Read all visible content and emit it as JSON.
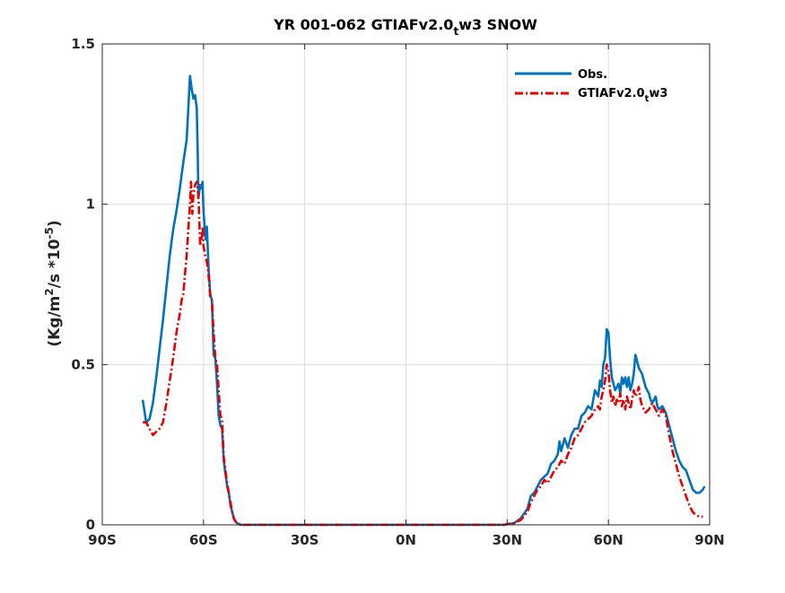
{
  "chart_data": {
    "type": "line",
    "title_main": "YR 001-062 GTIAFv2.0",
    "title_sub": "t",
    "title_tail": "w3 SNOW",
    "ylabel_main": "(Kg/m",
    "ylabel_sup1": "2",
    "ylabel_mid": "/s *10",
    "ylabel_sup2": "-5",
    "ylabel_end": ")",
    "xlabel": "",
    "xlim": [
      -90,
      90
    ],
    "ylim": [
      0,
      1.5
    ],
    "grid": true,
    "legend_position": "top-right",
    "x_ticks": [
      {
        "value": -90,
        "label": "90S"
      },
      {
        "value": -60,
        "label": "60S"
      },
      {
        "value": -30,
        "label": "30S"
      },
      {
        "value": 0,
        "label": "0N"
      },
      {
        "value": 30,
        "label": "30N"
      },
      {
        "value": 60,
        "label": "60N"
      },
      {
        "value": 90,
        "label": "90N"
      }
    ],
    "y_ticks": [
      {
        "value": 0,
        "label": "0"
      },
      {
        "value": 0.5,
        "label": "0.5"
      },
      {
        "value": 1,
        "label": "1"
      },
      {
        "value": 1.5,
        "label": "1.5"
      }
    ],
    "series": [
      {
        "name": "Obs.",
        "color": "#0072BD",
        "dash": "solid",
        "points": [
          [
            -78,
            0.39
          ],
          [
            -77,
            0.32
          ],
          [
            -76,
            0.33
          ],
          [
            -75,
            0.38
          ],
          [
            -74,
            0.46
          ],
          [
            -73,
            0.55
          ],
          [
            -72,
            0.64
          ],
          [
            -71,
            0.74
          ],
          [
            -70,
            0.84
          ],
          [
            -69,
            0.92
          ],
          [
            -68,
            0.98
          ],
          [
            -67,
            1.05
          ],
          [
            -66,
            1.13
          ],
          [
            -65,
            1.2
          ],
          [
            -64.5,
            1.3
          ],
          [
            -64,
            1.4
          ],
          [
            -63.5,
            1.36
          ],
          [
            -63,
            1.33
          ],
          [
            -62.5,
            1.34
          ],
          [
            -62,
            1.3
          ],
          [
            -61.7,
            1.15
          ],
          [
            -61.5,
            1.02
          ],
          [
            -61,
            1.06
          ],
          [
            -60.6,
            1.05
          ],
          [
            -60.3,
            1.07
          ],
          [
            -60,
            0.98
          ],
          [
            -59.6,
            0.92
          ],
          [
            -59.3,
            0.89
          ],
          [
            -59,
            0.93
          ],
          [
            -58.5,
            0.8
          ],
          [
            -58,
            0.72
          ],
          [
            -57.5,
            0.7
          ],
          [
            -57.2,
            0.6
          ],
          [
            -57,
            0.53
          ],
          [
            -56.5,
            0.52
          ],
          [
            -56,
            0.44
          ],
          [
            -55.5,
            0.34
          ],
          [
            -55,
            0.31
          ],
          [
            -54.5,
            0.3
          ],
          [
            -54,
            0.2
          ],
          [
            -53.5,
            0.16
          ],
          [
            -53,
            0.12
          ],
          [
            -52.5,
            0.1
          ],
          [
            -52,
            0.06
          ],
          [
            -51.5,
            0.04
          ],
          [
            -51,
            0.02
          ],
          [
            -50.5,
            0.01
          ],
          [
            -50,
            0.005
          ],
          [
            -49,
            0.0
          ],
          [
            -30,
            0.0
          ],
          [
            0,
            0.0
          ],
          [
            29,
            0.0
          ],
          [
            30,
            0.002
          ],
          [
            32,
            0.005
          ],
          [
            34,
            0.02
          ],
          [
            36,
            0.05
          ],
          [
            37,
            0.09
          ],
          [
            38,
            0.1
          ],
          [
            39,
            0.12
          ],
          [
            40,
            0.14
          ],
          [
            41,
            0.15
          ],
          [
            42,
            0.16
          ],
          [
            43,
            0.19
          ],
          [
            44,
            0.2
          ],
          [
            45,
            0.22
          ],
          [
            45.5,
            0.26
          ],
          [
            46,
            0.23
          ],
          [
            46.5,
            0.25
          ],
          [
            47,
            0.27
          ],
          [
            48,
            0.24
          ],
          [
            49,
            0.28
          ],
          [
            50,
            0.3
          ],
          [
            51,
            0.3
          ],
          [
            52,
            0.34
          ],
          [
            53,
            0.35
          ],
          [
            54,
            0.37
          ],
          [
            55,
            0.36
          ],
          [
            56,
            0.42
          ],
          [
            57,
            0.4
          ],
          [
            57.5,
            0.45
          ],
          [
            58,
            0.43
          ],
          [
            58.5,
            0.5
          ],
          [
            59,
            0.52
          ],
          [
            59.5,
            0.61
          ],
          [
            60,
            0.6
          ],
          [
            60.5,
            0.52
          ],
          [
            61,
            0.46
          ],
          [
            61.5,
            0.44
          ],
          [
            62,
            0.42
          ],
          [
            63,
            0.44
          ],
          [
            63.5,
            0.41
          ],
          [
            64,
            0.46
          ],
          [
            64.5,
            0.44
          ],
          [
            65,
            0.46
          ],
          [
            65.5,
            0.43
          ],
          [
            66,
            0.46
          ],
          [
            66.5,
            0.42
          ],
          [
            67,
            0.44
          ],
          [
            67.5,
            0.47
          ],
          [
            68,
            0.53
          ],
          [
            68.5,
            0.51
          ],
          [
            69,
            0.49
          ],
          [
            70,
            0.47
          ],
          [
            70.5,
            0.45
          ],
          [
            71,
            0.43
          ],
          [
            72,
            0.41
          ],
          [
            72.5,
            0.39
          ],
          [
            73,
            0.38
          ],
          [
            74,
            0.4
          ],
          [
            74.5,
            0.37
          ],
          [
            75,
            0.36
          ],
          [
            76,
            0.37
          ],
          [
            77,
            0.35
          ],
          [
            78,
            0.31
          ],
          [
            79,
            0.27
          ],
          [
            80,
            0.23
          ],
          [
            81,
            0.2
          ],
          [
            82,
            0.18
          ],
          [
            83,
            0.17
          ],
          [
            84,
            0.14
          ],
          [
            85,
            0.11
          ],
          [
            86,
            0.1
          ],
          [
            87,
            0.1
          ],
          [
            88,
            0.11
          ],
          [
            88.5,
            0.12
          ]
        ]
      },
      {
        "name": "GTIAFv2.0",
        "name_sub": "t",
        "name_tail": "w3",
        "color": "#E60000",
        "dash": "dashdot",
        "points": [
          [
            -78,
            0.32
          ],
          [
            -77,
            0.32
          ],
          [
            -76,
            0.3
          ],
          [
            -75,
            0.28
          ],
          [
            -74,
            0.29
          ],
          [
            -73,
            0.3
          ],
          [
            -72,
            0.32
          ],
          [
            -71,
            0.38
          ],
          [
            -70,
            0.45
          ],
          [
            -69,
            0.52
          ],
          [
            -68,
            0.6
          ],
          [
            -67,
            0.66
          ],
          [
            -66.5,
            0.7
          ],
          [
            -66,
            0.72
          ],
          [
            -65.5,
            0.78
          ],
          [
            -65,
            0.84
          ],
          [
            -64.5,
            0.92
          ],
          [
            -64,
            1.0
          ],
          [
            -63.7,
            1.07
          ],
          [
            -63.3,
            0.97
          ],
          [
            -63,
            1.03
          ],
          [
            -62.5,
            1.06
          ],
          [
            -62,
            1.07
          ],
          [
            -61.7,
            1.05
          ],
          [
            -61.4,
            1.0
          ],
          [
            -61,
            0.87
          ],
          [
            -60.5,
            0.9
          ],
          [
            -60.2,
            0.93
          ],
          [
            -60,
            0.87
          ],
          [
            -59.5,
            0.84
          ],
          [
            -59,
            0.82
          ],
          [
            -58.5,
            0.78
          ],
          [
            -58,
            0.71
          ],
          [
            -57.5,
            0.7
          ],
          [
            -57,
            0.6
          ],
          [
            -56.5,
            0.52
          ],
          [
            -56,
            0.5
          ],
          [
            -55.5,
            0.42
          ],
          [
            -55,
            0.34
          ],
          [
            -54.5,
            0.33
          ],
          [
            -54,
            0.21
          ],
          [
            -53.5,
            0.17
          ],
          [
            -53,
            0.13
          ],
          [
            -52.5,
            0.1
          ],
          [
            -52,
            0.07
          ],
          [
            -51.5,
            0.04
          ],
          [
            -51,
            0.02
          ],
          [
            -50.5,
            0.01
          ],
          [
            -50,
            0.005
          ],
          [
            -49,
            0.0
          ],
          [
            -30,
            0.0
          ],
          [
            0,
            0.0
          ],
          [
            29,
            0.0
          ],
          [
            30,
            0.002
          ],
          [
            32,
            0.005
          ],
          [
            34,
            0.015
          ],
          [
            36,
            0.04
          ],
          [
            37,
            0.07
          ],
          [
            38,
            0.09
          ],
          [
            39,
            0.11
          ],
          [
            40,
            0.12
          ],
          [
            41,
            0.14
          ],
          [
            42,
            0.13
          ],
          [
            43,
            0.15
          ],
          [
            44,
            0.17
          ],
          [
            45,
            0.18
          ],
          [
            46,
            0.2
          ],
          [
            47,
            0.19
          ],
          [
            48,
            0.22
          ],
          [
            49,
            0.24
          ],
          [
            50,
            0.27
          ],
          [
            51,
            0.28
          ],
          [
            52,
            0.3
          ],
          [
            53,
            0.32
          ],
          [
            54,
            0.33
          ],
          [
            55,
            0.34
          ],
          [
            56,
            0.36
          ],
          [
            57,
            0.37
          ],
          [
            57.5,
            0.36
          ],
          [
            58,
            0.4
          ],
          [
            58.5,
            0.42
          ],
          [
            59,
            0.45
          ],
          [
            59.5,
            0.5
          ],
          [
            60,
            0.48
          ],
          [
            60.5,
            0.42
          ],
          [
            61,
            0.38
          ],
          [
            61.5,
            0.4
          ],
          [
            62,
            0.37
          ],
          [
            62.5,
            0.39
          ],
          [
            63,
            0.38
          ],
          [
            63.5,
            0.41
          ],
          [
            64,
            0.37
          ],
          [
            64.5,
            0.39
          ],
          [
            65,
            0.36
          ],
          [
            65.5,
            0.4
          ],
          [
            66,
            0.38
          ],
          [
            66.5,
            0.36
          ],
          [
            67,
            0.39
          ],
          [
            67.5,
            0.42
          ],
          [
            68,
            0.4
          ],
          [
            68.5,
            0.41
          ],
          [
            69,
            0.43
          ],
          [
            69.5,
            0.39
          ],
          [
            70,
            0.37
          ],
          [
            71,
            0.35
          ],
          [
            72,
            0.36
          ],
          [
            73,
            0.38
          ],
          [
            74,
            0.36
          ],
          [
            75,
            0.34
          ],
          [
            76,
            0.36
          ],
          [
            77,
            0.34
          ],
          [
            78,
            0.28
          ],
          [
            79,
            0.23
          ],
          [
            80,
            0.19
          ],
          [
            81,
            0.15
          ],
          [
            82,
            0.12
          ],
          [
            83,
            0.09
          ],
          [
            84,
            0.06
          ],
          [
            85,
            0.04
          ],
          [
            86,
            0.03
          ],
          [
            87,
            0.025
          ],
          [
            88,
            0.025
          ]
        ]
      }
    ]
  }
}
